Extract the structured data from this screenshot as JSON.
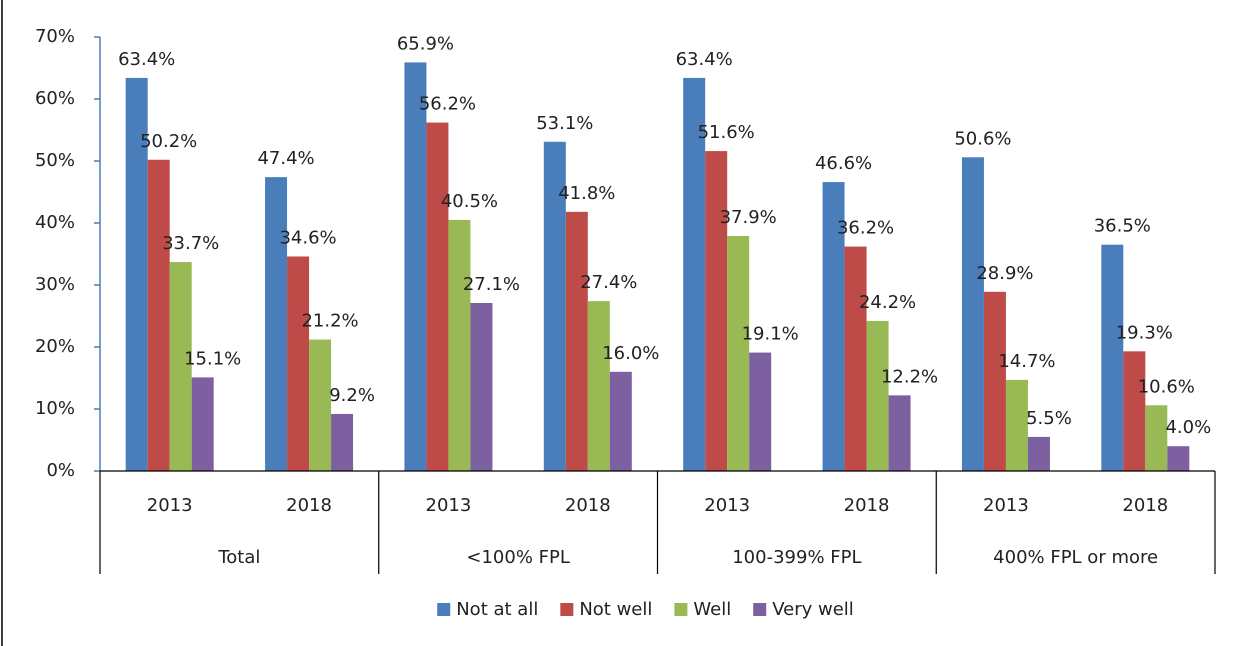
{
  "chart_data": {
    "type": "bar",
    "categories": [
      "2013",
      "2018",
      "2013",
      "2018",
      "2013",
      "2018",
      "2013",
      "2018"
    ],
    "groups": [
      "Total",
      "<100% FPL",
      "100-399% FPL",
      "400% FPL or more"
    ],
    "series": [
      {
        "name": "Not at all",
        "color": "#4a7ebb",
        "values": [
          63.4,
          47.4,
          65.9,
          53.1,
          63.4,
          46.6,
          50.6,
          36.5
        ],
        "value_labels": [
          "63.4%",
          "47.4%",
          "65.9%",
          "53.1%",
          "63.4%",
          "46.6%",
          "50.6%",
          "36.5%"
        ]
      },
      {
        "name": "Not well",
        "color": "#be4b48",
        "values": [
          50.2,
          34.6,
          56.2,
          41.8,
          51.6,
          36.2,
          28.9,
          19.3
        ],
        "value_labels": [
          "50.2%",
          "34.6%",
          "56.2%",
          "41.8%",
          "51.6%",
          "36.2%",
          "28.9%",
          "19.3%"
        ]
      },
      {
        "name": "Well",
        "color": "#98b954",
        "values": [
          33.7,
          21.2,
          40.5,
          27.4,
          37.9,
          24.2,
          14.7,
          10.6
        ],
        "value_labels": [
          "33.7%",
          "21.2%",
          "40.5%",
          "27.4%",
          "37.9%",
          "24.2%",
          "14.7%",
          "10.6%"
        ]
      },
      {
        "name": "Very well",
        "color": "#7d60a0",
        "values": [
          15.1,
          9.2,
          27.1,
          16.0,
          19.1,
          12.2,
          5.5,
          4.0
        ],
        "value_labels": [
          "15.1%",
          "9.2%",
          "27.1%",
          "16.0%",
          "19.1%",
          "12.2%",
          "5.5%",
          "4.0%"
        ]
      }
    ],
    "ylim": [
      0,
      70
    ],
    "yticks": [
      {
        "value": 0,
        "label": "0%"
      },
      {
        "value": 10,
        "label": "10%"
      },
      {
        "value": 20,
        "label": "20%"
      },
      {
        "value": 30,
        "label": "30%"
      },
      {
        "value": 40,
        "label": "40%"
      },
      {
        "value": 50,
        "label": "50%"
      },
      {
        "value": 60,
        "label": "60%"
      },
      {
        "value": 70,
        "label": "70%"
      }
    ],
    "grid": false,
    "legend": "bottom"
  }
}
